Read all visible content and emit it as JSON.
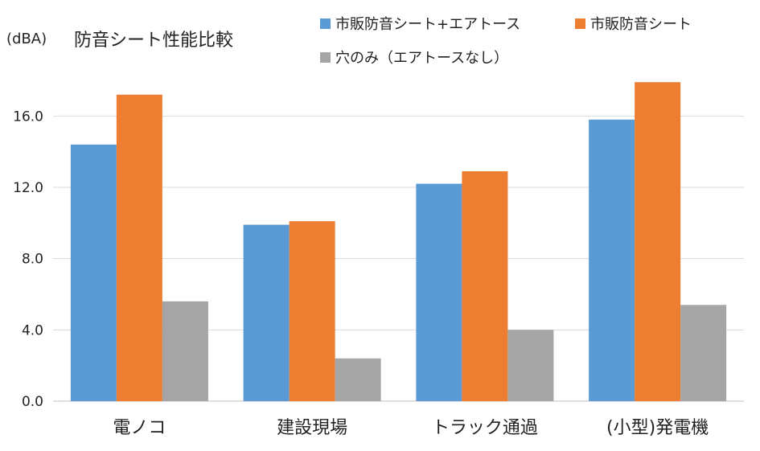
{
  "chart_data": {
    "type": "bar",
    "title": "防音シート性能比較",
    "ylabel": "(dBA)",
    "xlabel": "",
    "categories": [
      "電ノコ",
      "建設現場",
      "トラック通過",
      "(小型)発電機"
    ],
    "series": [
      {
        "name": "市販防音シート+エアトース",
        "color": "#5b9bd5",
        "values": [
          14.4,
          9.9,
          12.2,
          15.8
        ]
      },
      {
        "name": "市販防音シート",
        "color": "#ed7d31",
        "values": [
          17.2,
          10.1,
          12.9,
          17.9
        ]
      },
      {
        "name": "穴のみ（エアトースなし）",
        "color": "#a5a5a5",
        "values": [
          5.6,
          2.4,
          4.0,
          5.4
        ]
      }
    ],
    "ylim": [
      0,
      18
    ],
    "yticks": [
      "0.0",
      "4.0",
      "8.0",
      "12.0",
      "16.0"
    ],
    "ytick_values": [
      0,
      4,
      8,
      12,
      16
    ],
    "grid": true,
    "legend_position": "top-right"
  }
}
